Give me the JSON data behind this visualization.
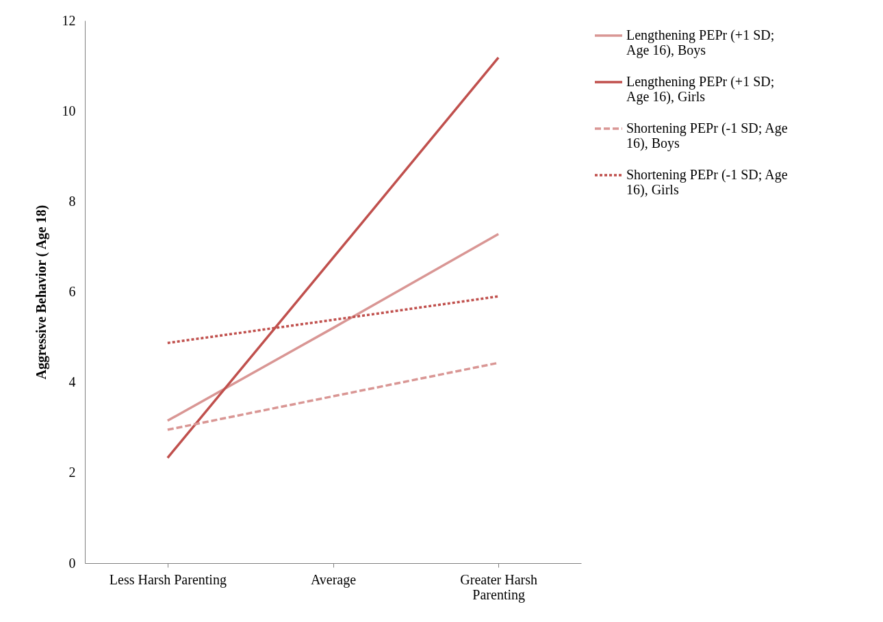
{
  "chart_data": {
    "type": "line",
    "ylabel": "Aggressive Behavior ( Age 18)",
    "categories": [
      "Less Harsh Parenting",
      "Average",
      "Greater Harsh Parenting"
    ],
    "ylim": [
      0,
      12
    ],
    "yticks": [
      0,
      2,
      4,
      6,
      8,
      10,
      12
    ],
    "legend": "right",
    "series": [
      {
        "name": "Lengthening PEPr (+1 SD; Age 16), Boys",
        "color": "#d99694",
        "line_style": "solid",
        "values": [
          3.15,
          5.2,
          7.28
        ]
      },
      {
        "name": "Lengthening PEPr (+1 SD; Age 16), Girls",
        "color": "#c0504d",
        "line_style": "solid",
        "values": [
          2.33,
          6.75,
          11.18
        ]
      },
      {
        "name": "Shortening PEPr (-1 SD; Age 16), Boys",
        "color": "#d99694",
        "line_style": "dashed",
        "values": [
          2.95,
          3.69,
          4.43
        ]
      },
      {
        "name": "Shortening PEPr (-1 SD; Age 16), Girls",
        "color": "#c0504d",
        "line_style": "dotted",
        "values": [
          4.87,
          5.38,
          5.9
        ]
      }
    ]
  }
}
